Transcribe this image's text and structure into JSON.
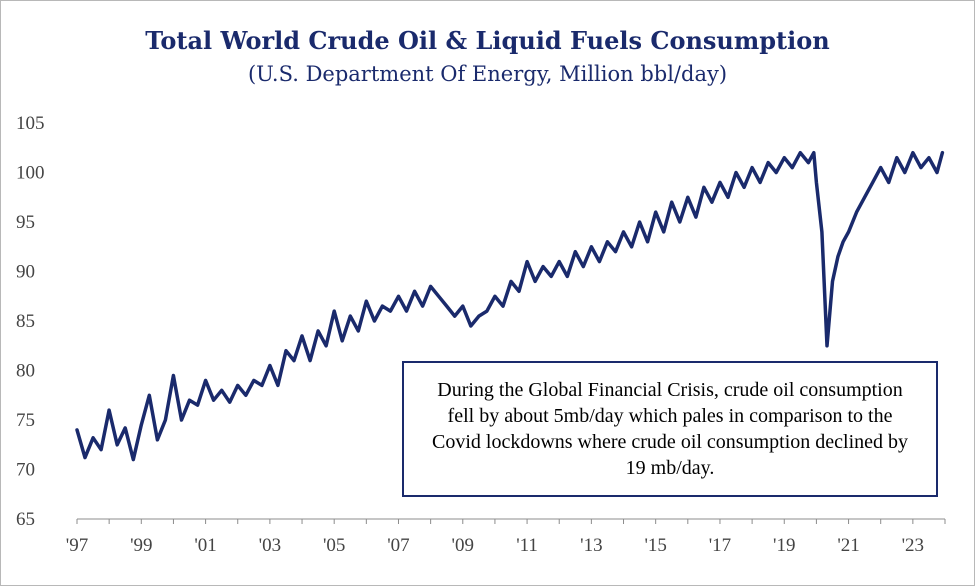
{
  "chart_data": {
    "type": "line",
    "title": "Total World Crude Oil & Liquid Fuels Consumption",
    "subtitle": "(U.S. Department Of Energy, Million bbl/day)",
    "xlabel": "",
    "ylabel": "",
    "ylim": [
      65,
      105
    ],
    "xlim": [
      1997,
      2024
    ],
    "y_ticks": [
      65,
      70,
      75,
      80,
      85,
      90,
      95,
      100,
      105
    ],
    "x_ticks": [
      {
        "year": 1997,
        "label": "'97"
      },
      {
        "year": 1999,
        "label": "'99"
      },
      {
        "year": 2001,
        "label": "'01"
      },
      {
        "year": 2003,
        "label": "'03"
      },
      {
        "year": 2005,
        "label": "'05"
      },
      {
        "year": 2007,
        "label": "'07"
      },
      {
        "year": 2009,
        "label": "'09"
      },
      {
        "year": 2011,
        "label": "'11"
      },
      {
        "year": 2013,
        "label": "'13"
      },
      {
        "year": 2015,
        "label": "'15"
      },
      {
        "year": 2017,
        "label": "'17"
      },
      {
        "year": 2019,
        "label": "'19"
      },
      {
        "year": 2021,
        "label": "'21"
      },
      {
        "year": 2023,
        "label": "'23"
      }
    ],
    "grid": false,
    "series": [
      {
        "color": "#1a2a6c",
        "x": [
          1997.0,
          1997.25,
          1997.5,
          1997.75,
          1998.0,
          1998.25,
          1998.5,
          1998.75,
          1999.0,
          1999.25,
          1999.5,
          1999.75,
          2000.0,
          2000.25,
          2000.5,
          2000.75,
          2001.0,
          2001.25,
          2001.5,
          2001.75,
          2002.0,
          2002.25,
          2002.5,
          2002.75,
          2003.0,
          2003.25,
          2003.5,
          2003.75,
          2004.0,
          2004.25,
          2004.5,
          2004.75,
          2005.0,
          2005.25,
          2005.5,
          2005.75,
          2006.0,
          2006.25,
          2006.5,
          2006.75,
          2007.0,
          2007.25,
          2007.5,
          2007.75,
          2008.0,
          2008.25,
          2008.5,
          2008.75,
          2009.0,
          2009.25,
          2009.5,
          2009.75,
          2010.0,
          2010.25,
          2010.5,
          2010.75,
          2011.0,
          2011.25,
          2011.5,
          2011.75,
          2012.0,
          2012.25,
          2012.5,
          2012.75,
          2013.0,
          2013.25,
          2013.5,
          2013.75,
          2014.0,
          2014.25,
          2014.5,
          2014.75,
          2015.0,
          2015.25,
          2015.5,
          2015.75,
          2016.0,
          2016.25,
          2016.5,
          2016.75,
          2017.0,
          2017.25,
          2017.5,
          2017.75,
          2018.0,
          2018.25,
          2018.5,
          2018.75,
          2019.0,
          2019.25,
          2019.5,
          2019.75,
          2019.92,
          2020.0,
          2020.17,
          2020.33,
          2020.5,
          2020.67,
          2020.83,
          2021.0,
          2021.25,
          2021.5,
          2021.75,
          2022.0,
          2022.25,
          2022.5,
          2022.75,
          2023.0,
          2023.25,
          2023.5,
          2023.75,
          2023.92
        ],
        "values": [
          74.0,
          71.2,
          73.2,
          72.0,
          76.0,
          72.5,
          74.2,
          71.0,
          74.5,
          77.5,
          73.0,
          75.0,
          79.5,
          75.0,
          77.0,
          76.5,
          79.0,
          77.0,
          78.0,
          76.8,
          78.5,
          77.5,
          79.0,
          78.5,
          80.5,
          78.5,
          82.0,
          81.0,
          83.5,
          81.0,
          84.0,
          82.5,
          86.0,
          83.0,
          85.5,
          84.0,
          87.0,
          85.0,
          86.5,
          86.0,
          87.5,
          86.0,
          88.0,
          86.5,
          88.5,
          87.5,
          86.5,
          85.5,
          86.5,
          84.5,
          85.5,
          86.0,
          87.5,
          86.5,
          89.0,
          88.0,
          91.0,
          89.0,
          90.5,
          89.5,
          91.0,
          89.5,
          92.0,
          90.5,
          92.5,
          91.0,
          93.0,
          92.0,
          94.0,
          92.5,
          95.0,
          93.0,
          96.0,
          94.0,
          97.0,
          95.0,
          97.5,
          95.5,
          98.5,
          97.0,
          99.0,
          97.5,
          100.0,
          98.5,
          100.5,
          99.0,
          101.0,
          100.0,
          101.5,
          100.5,
          102.0,
          101.0,
          102.0,
          99.0,
          94.0,
          82.5,
          89.0,
          91.5,
          93.0,
          94.0,
          96.0,
          97.5,
          99.0,
          100.5,
          99.0,
          101.5,
          100.0,
          102.0,
          100.5,
          101.5,
          100.0,
          102.0
        ]
      }
    ],
    "annotations": [
      "During the Global Financial Crisis, crude oil consumption fell by about 5mb/day which pales in comparison to the Covid lockdowns where crude oil consumption declined by 19 mb/day."
    ]
  }
}
